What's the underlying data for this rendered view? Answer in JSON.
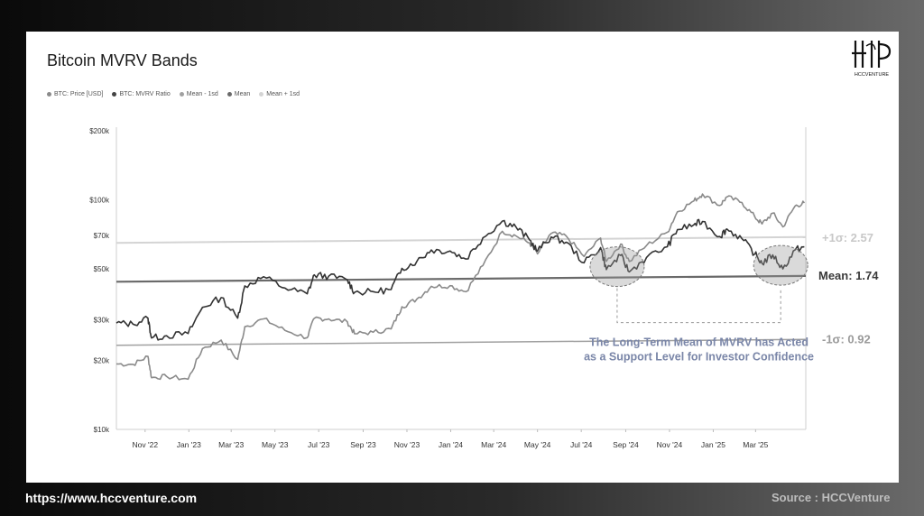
{
  "title": "Bitcoin MVRV Bands",
  "legend": [
    {
      "label": "BTC: Price [USD]",
      "color": "#8a8a8a"
    },
    {
      "label": "BTC: MVRV Ratio",
      "color": "#444444"
    },
    {
      "label": "Mean - 1sd",
      "color": "#a0a0a0"
    },
    {
      "label": "Mean",
      "color": "#6a6a6a"
    },
    {
      "label": "Mean + 1sd",
      "color": "#d4d4d4"
    }
  ],
  "logo_text": "HCCVENTURE",
  "footer": {
    "url": "https://www.hccventure.com",
    "source": "Source : HCCVenture"
  },
  "chart_data": {
    "type": "line",
    "title": "Bitcoin MVRV Bands",
    "y_scale": "log",
    "ylim": [
      10000,
      200000
    ],
    "y_ticks": [
      {
        "value": 10000,
        "label": "$10k"
      },
      {
        "value": 20000,
        "label": "$20k"
      },
      {
        "value": 30000,
        "label": "$30k"
      },
      {
        "value": 50000,
        "label": "$50k"
      },
      {
        "value": 70000,
        "label": "$70k"
      },
      {
        "value": 100000,
        "label": "$100k"
      },
      {
        "value": 200000,
        "label": "$200k"
      }
    ],
    "x_range": [
      "2022-09-22",
      "2025-05-10"
    ],
    "x_ticks": [
      {
        "date": "2022-11-01",
        "label": "Nov '22"
      },
      {
        "date": "2023-01-01",
        "label": "Jan '23"
      },
      {
        "date": "2023-03-01",
        "label": "Mar '23"
      },
      {
        "date": "2023-05-01",
        "label": "May '23"
      },
      {
        "date": "2023-07-01",
        "label": "Jul '23"
      },
      {
        "date": "2023-09-01",
        "label": "Sep '23"
      },
      {
        "date": "2023-11-01",
        "label": "Nov '23"
      },
      {
        "date": "2024-01-01",
        "label": "Jan '24"
      },
      {
        "date": "2024-03-01",
        "label": "Mar '24"
      },
      {
        "date": "2024-05-01",
        "label": "May '24"
      },
      {
        "date": "2024-07-01",
        "label": "Jul '24"
      },
      {
        "date": "2024-09-01",
        "label": "Sep '24"
      },
      {
        "date": "2024-11-01",
        "label": "Nov '24"
      },
      {
        "date": "2025-01-01",
        "label": "Jan '25"
      },
      {
        "date": "2025-03-01",
        "label": "Mar '25"
      }
    ],
    "grid": false,
    "legend_position": "top-left",
    "series": [
      {
        "name": "BTC: Price [USD]",
        "color": "#8a8a8a",
        "points": [
          [
            "2022-09-22",
            19300
          ],
          [
            "2022-10-15",
            19200
          ],
          [
            "2022-11-05",
            20800
          ],
          [
            "2022-11-10",
            16800
          ],
          [
            "2022-12-01",
            17000
          ],
          [
            "2022-12-31",
            16550
          ],
          [
            "2023-01-20",
            22500
          ],
          [
            "2023-02-15",
            24500
          ],
          [
            "2023-03-10",
            20200
          ],
          [
            "2023-03-20",
            28000
          ],
          [
            "2023-04-15",
            30300
          ],
          [
            "2023-05-15",
            27000
          ],
          [
            "2023-06-15",
            25100
          ],
          [
            "2023-06-25",
            30500
          ],
          [
            "2023-07-15",
            30300
          ],
          [
            "2023-08-10",
            29400
          ],
          [
            "2023-08-20",
            26100
          ],
          [
            "2023-09-15",
            26500
          ],
          [
            "2023-10-10",
            27400
          ],
          [
            "2023-10-25",
            34200
          ],
          [
            "2023-11-15",
            37000
          ],
          [
            "2023-12-05",
            42000
          ],
          [
            "2023-12-31",
            42300
          ],
          [
            "2024-01-22",
            39800
          ],
          [
            "2024-02-15",
            51800
          ],
          [
            "2024-03-13",
            73000
          ],
          [
            "2024-04-01",
            69700
          ],
          [
            "2024-04-20",
            64900
          ],
          [
            "2024-05-01",
            58200
          ],
          [
            "2024-05-20",
            71400
          ],
          [
            "2024-06-10",
            69600
          ],
          [
            "2024-07-05",
            56700
          ],
          [
            "2024-07-28",
            68200
          ],
          [
            "2024-08-05",
            54000
          ],
          [
            "2024-08-25",
            64200
          ],
          [
            "2024-09-06",
            53900
          ],
          [
            "2024-09-30",
            63300
          ],
          [
            "2024-10-29",
            72300
          ],
          [
            "2024-11-12",
            88700
          ],
          [
            "2024-12-05",
            99000
          ],
          [
            "2024-12-17",
            106000
          ],
          [
            "2025-01-10",
            94500
          ],
          [
            "2025-01-20",
            103000
          ],
          [
            "2025-02-10",
            97400
          ],
          [
            "2025-02-28",
            84300
          ],
          [
            "2025-03-10",
            78600
          ],
          [
            "2025-03-25",
            87500
          ],
          [
            "2025-04-08",
            76300
          ],
          [
            "2025-04-25",
            94000
          ],
          [
            "2025-05-08",
            97000
          ]
        ]
      },
      {
        "name": "BTC: MVRV Ratio",
        "color": "#333333",
        "points": [
          [
            "2022-09-22",
            1.0
          ],
          [
            "2022-10-15",
            0.99
          ],
          [
            "2022-11-05",
            1.05
          ],
          [
            "2022-11-10",
            0.86
          ],
          [
            "2022-12-01",
            0.88
          ],
          [
            "2022-12-31",
            0.9
          ],
          [
            "2023-01-20",
            1.17
          ],
          [
            "2023-02-15",
            1.29
          ],
          [
            "2023-03-10",
            1.05
          ],
          [
            "2023-03-20",
            1.45
          ],
          [
            "2023-04-15",
            1.59
          ],
          [
            "2023-05-15",
            1.42
          ],
          [
            "2023-06-15",
            1.34
          ],
          [
            "2023-06-25",
            1.62
          ],
          [
            "2023-07-15",
            1.6
          ],
          [
            "2023-08-10",
            1.54
          ],
          [
            "2023-08-20",
            1.36
          ],
          [
            "2023-09-15",
            1.37
          ],
          [
            "2023-10-10",
            1.4
          ],
          [
            "2023-10-25",
            1.73
          ],
          [
            "2023-11-15",
            1.86
          ],
          [
            "2023-12-05",
            2.08
          ],
          [
            "2023-12-31",
            2.06
          ],
          [
            "2024-01-22",
            1.9
          ],
          [
            "2024-02-15",
            2.35
          ],
          [
            "2024-03-13",
            2.78
          ],
          [
            "2024-04-01",
            2.62
          ],
          [
            "2024-04-20",
            2.3
          ],
          [
            "2024-05-01",
            2.06
          ],
          [
            "2024-05-20",
            2.37
          ],
          [
            "2024-06-10",
            2.25
          ],
          [
            "2024-07-05",
            1.83
          ],
          [
            "2024-07-28",
            2.13
          ],
          [
            "2024-08-05",
            1.71
          ],
          [
            "2024-08-25",
            1.97
          ],
          [
            "2024-09-06",
            1.67
          ],
          [
            "2024-09-30",
            1.93
          ],
          [
            "2024-10-29",
            2.15
          ],
          [
            "2024-11-12",
            2.55
          ],
          [
            "2024-12-05",
            2.68
          ],
          [
            "2024-12-17",
            2.77
          ],
          [
            "2025-01-10",
            2.38
          ],
          [
            "2025-01-20",
            2.57
          ],
          [
            "2025-02-10",
            2.33
          ],
          [
            "2025-02-28",
            2.0
          ],
          [
            "2025-03-10",
            1.82
          ],
          [
            "2025-03-25",
            1.98
          ],
          [
            "2025-04-08",
            1.72
          ],
          [
            "2025-04-25",
            2.08
          ],
          [
            "2025-05-08",
            2.15
          ]
        ]
      },
      {
        "name": "Mean - 1sd",
        "color": "#a0a0a0",
        "value": 0.92
      },
      {
        "name": "Mean",
        "color": "#6a6a6a",
        "value": 1.74
      },
      {
        "name": "Mean + 1sd",
        "color": "#d4d4d4",
        "value": 2.57
      }
    ],
    "annotations": [
      {
        "text": "+1σ: 2.57"
      },
      {
        "text": "Mean: 1.74"
      },
      {
        "text": "-1σ: 0.92"
      },
      {
        "lines": [
          "The Long-Term Mean of MVRV has Acted",
          "as a Support Level for Investor Confidence"
        ]
      }
    ]
  }
}
